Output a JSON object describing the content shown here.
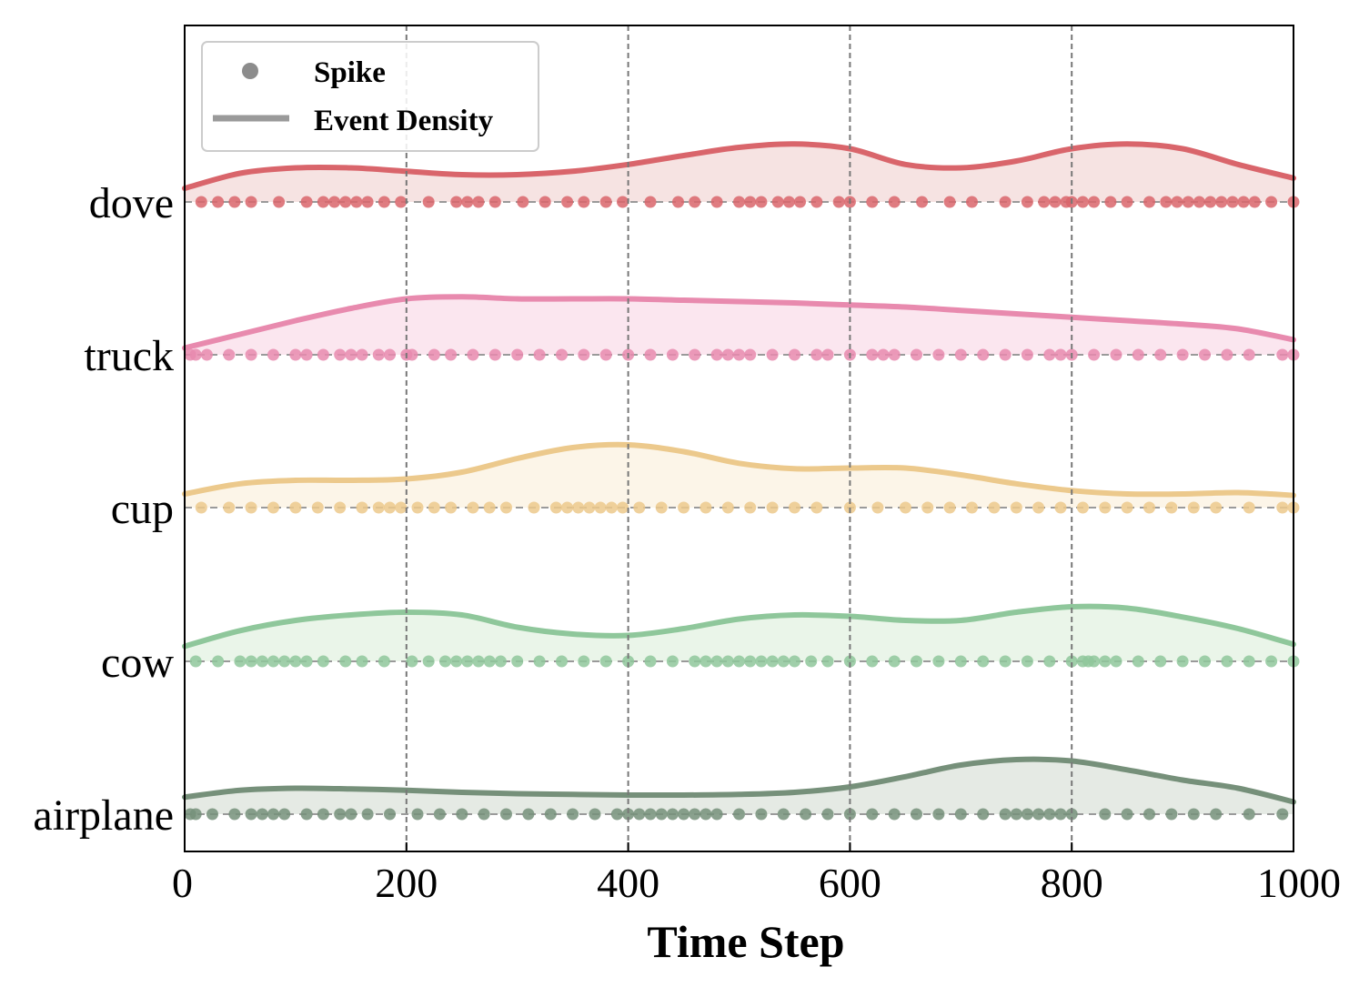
{
  "chart_data": {
    "type": "scatter",
    "title": "",
    "xlabel": "Time Step",
    "ylabel": "",
    "xlim": [
      0,
      1000
    ],
    "xticks": [
      0,
      200,
      400,
      600,
      800,
      1000
    ],
    "xtick_labels": [
      "0",
      "200",
      "400",
      "600",
      "800",
      "1000"
    ],
    "grid": "vertical dashed at x ticks",
    "legend": {
      "position": "top-left",
      "entries": [
        {
          "label": "Spike",
          "marker": "circle"
        },
        {
          "label": "Event Density",
          "marker": "line"
        }
      ]
    },
    "series": [
      {
        "name": "dove",
        "color": "#d9656b",
        "fill": "#f5e1e0",
        "density_x": [
          0,
          50,
          100,
          150,
          200,
          250,
          300,
          350,
          400,
          450,
          500,
          550,
          600,
          650,
          700,
          750,
          800,
          850,
          900,
          950,
          1000
        ],
        "density_y": [
          0.2,
          0.42,
          0.5,
          0.5,
          0.45,
          0.4,
          0.4,
          0.45,
          0.55,
          0.68,
          0.8,
          0.85,
          0.78,
          0.55,
          0.5,
          0.6,
          0.78,
          0.85,
          0.78,
          0.55,
          0.35
        ],
        "spikes": [
          15,
          30,
          45,
          60,
          85,
          110,
          125,
          135,
          145,
          155,
          165,
          180,
          195,
          220,
          245,
          255,
          265,
          280,
          305,
          325,
          345,
          360,
          380,
          395,
          420,
          445,
          460,
          480,
          500,
          510,
          520,
          535,
          545,
          555,
          570,
          590,
          600,
          620,
          640,
          665,
          690,
          710,
          740,
          760,
          775,
          785,
          795,
          800,
          810,
          820,
          835,
          850,
          870,
          885,
          895,
          905,
          915,
          925,
          935,
          945,
          955,
          965,
          980,
          1000
        ]
      },
      {
        "name": "truck",
        "color": "#e88aae",
        "fill": "#fbe5ee",
        "density_x": [
          0,
          50,
          100,
          150,
          200,
          250,
          300,
          350,
          400,
          450,
          500,
          550,
          600,
          650,
          700,
          750,
          800,
          850,
          900,
          950,
          1000
        ],
        "density_y": [
          0.1,
          0.3,
          0.5,
          0.68,
          0.82,
          0.85,
          0.82,
          0.82,
          0.82,
          0.8,
          0.78,
          0.76,
          0.73,
          0.7,
          0.65,
          0.6,
          0.55,
          0.5,
          0.45,
          0.38,
          0.22
        ],
        "spikes": [
          5,
          10,
          20,
          40,
          60,
          80,
          100,
          110,
          125,
          140,
          150,
          160,
          175,
          185,
          200,
          205,
          225,
          240,
          260,
          280,
          300,
          320,
          340,
          360,
          380,
          400,
          420,
          440,
          460,
          480,
          490,
          500,
          510,
          530,
          550,
          570,
          580,
          600,
          620,
          630,
          640,
          660,
          680,
          700,
          720,
          740,
          760,
          780,
          790,
          800,
          820,
          840,
          860,
          880,
          900,
          920,
          940,
          960,
          990,
          1000
        ]
      },
      {
        "name": "cup",
        "color": "#ecc98c",
        "fill": "#fcf4e7",
        "density_x": [
          0,
          50,
          100,
          150,
          200,
          250,
          300,
          350,
          400,
          450,
          500,
          550,
          600,
          650,
          700,
          750,
          800,
          850,
          900,
          950,
          1000
        ],
        "density_y": [
          0.2,
          0.35,
          0.4,
          0.4,
          0.42,
          0.52,
          0.72,
          0.88,
          0.92,
          0.82,
          0.65,
          0.57,
          0.58,
          0.58,
          0.48,
          0.35,
          0.25,
          0.2,
          0.2,
          0.22,
          0.18
        ],
        "spikes": [
          15,
          40,
          60,
          80,
          100,
          120,
          140,
          160,
          175,
          185,
          195,
          210,
          225,
          240,
          260,
          275,
          290,
          315,
          335,
          345,
          355,
          365,
          375,
          385,
          395,
          410,
          430,
          450,
          470,
          490,
          510,
          530,
          550,
          570,
          600,
          625,
          650,
          670,
          690,
          710,
          730,
          750,
          770,
          790,
          810,
          830,
          850,
          870,
          890,
          910,
          930,
          960,
          990,
          1000
        ]
      },
      {
        "name": "cow",
        "color": "#8fc79b",
        "fill": "#e9f4e8",
        "density_x": [
          0,
          50,
          100,
          150,
          200,
          250,
          300,
          350,
          400,
          450,
          500,
          550,
          600,
          650,
          700,
          750,
          800,
          850,
          900,
          950,
          1000
        ],
        "density_y": [
          0.22,
          0.45,
          0.6,
          0.68,
          0.72,
          0.68,
          0.5,
          0.4,
          0.38,
          0.48,
          0.62,
          0.68,
          0.66,
          0.6,
          0.6,
          0.72,
          0.8,
          0.78,
          0.65,
          0.48,
          0.25
        ],
        "spikes": [
          10,
          30,
          50,
          60,
          70,
          80,
          90,
          100,
          110,
          125,
          145,
          160,
          180,
          205,
          220,
          235,
          245,
          255,
          265,
          275,
          285,
          300,
          320,
          340,
          360,
          380,
          400,
          420,
          440,
          460,
          470,
          480,
          490,
          500,
          510,
          520,
          530,
          540,
          550,
          565,
          580,
          600,
          620,
          640,
          660,
          680,
          700,
          720,
          740,
          760,
          780,
          800,
          810,
          815,
          820,
          830,
          840,
          860,
          880,
          900,
          920,
          940,
          960,
          980,
          1000
        ]
      },
      {
        "name": "airplane",
        "color": "#76907a",
        "fill": "#e4e9e3",
        "density_x": [
          0,
          50,
          100,
          150,
          200,
          250,
          300,
          350,
          400,
          450,
          500,
          550,
          600,
          650,
          700,
          750,
          800,
          850,
          900,
          950,
          1000
        ],
        "density_y": [
          0.25,
          0.35,
          0.38,
          0.37,
          0.35,
          0.32,
          0.3,
          0.29,
          0.28,
          0.28,
          0.29,
          0.32,
          0.4,
          0.55,
          0.72,
          0.8,
          0.78,
          0.65,
          0.5,
          0.38,
          0.18
        ],
        "spikes": [
          5,
          10,
          25,
          45,
          60,
          70,
          80,
          90,
          110,
          125,
          140,
          150,
          165,
          185,
          210,
          230,
          250,
          270,
          290,
          310,
          330,
          350,
          370,
          390,
          400,
          410,
          420,
          430,
          440,
          450,
          460,
          470,
          480,
          500,
          520,
          540,
          560,
          580,
          600,
          620,
          640,
          660,
          680,
          700,
          720,
          740,
          750,
          760,
          770,
          780,
          790,
          800,
          830,
          850,
          870,
          890,
          910,
          930,
          960,
          990
        ]
      }
    ]
  }
}
